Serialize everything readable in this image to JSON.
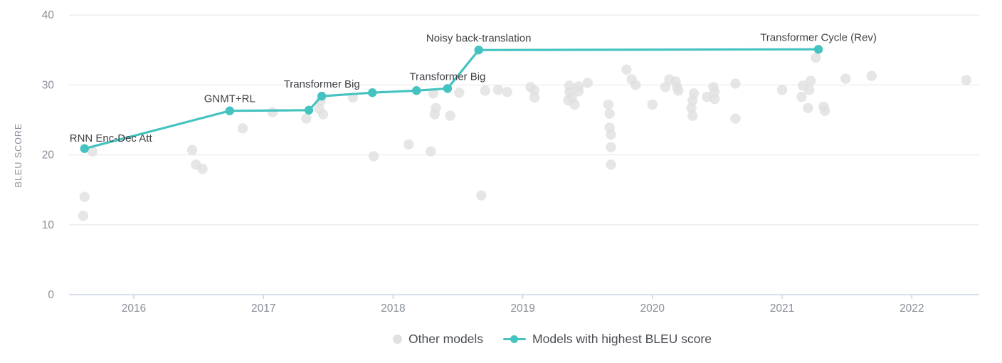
{
  "accent_color": "#45c3c0",
  "other_color": "#e0e0e0",
  "grid_color": "#ececec",
  "axis_color": "#ccd5e8",
  "chart_data": {
    "type": "scatter",
    "title": "",
    "xlabel": "",
    "ylabel": "BLEU SCORE",
    "grid": true,
    "legend_position": "bottom-center",
    "xlim": [
      2015.5,
      2022.55
    ],
    "ylim": [
      0,
      40
    ],
    "x_ticks": [
      {
        "v": 2016,
        "label": "2016"
      },
      {
        "v": 2017,
        "label": "2017"
      },
      {
        "v": 2018,
        "label": "2018"
      },
      {
        "v": 2019,
        "label": "2019"
      },
      {
        "v": 2020,
        "label": "2020"
      },
      {
        "v": 2021,
        "label": "2021"
      },
      {
        "v": 2022,
        "label": "2022"
      }
    ],
    "y_ticks": [
      {
        "v": 0,
        "label": "0"
      },
      {
        "v": 10,
        "label": "10"
      },
      {
        "v": 20,
        "label": "20"
      },
      {
        "v": 30,
        "label": "30"
      },
      {
        "v": 40,
        "label": "40"
      }
    ],
    "series": [
      {
        "name": "Other models",
        "type": "scatter",
        "color": "#e0e0e0",
        "points": [
          [
            2015.62,
            14.0
          ],
          [
            2015.61,
            11.3
          ],
          [
            2015.68,
            20.5
          ],
          [
            2016.45,
            20.7
          ],
          [
            2016.48,
            18.6
          ],
          [
            2016.53,
            18.0
          ],
          [
            2016.84,
            23.8
          ],
          [
            2017.07,
            26.1
          ],
          [
            2017.33,
            25.2
          ],
          [
            2017.44,
            27.7
          ],
          [
            2017.43,
            26.6
          ],
          [
            2017.46,
            25.8
          ],
          [
            2017.69,
            28.2
          ],
          [
            2017.85,
            19.8
          ],
          [
            2018.12,
            21.5
          ],
          [
            2018.29,
            20.5
          ],
          [
            2018.31,
            28.8
          ],
          [
            2018.33,
            26.7
          ],
          [
            2018.32,
            25.8
          ],
          [
            2018.44,
            25.6
          ],
          [
            2018.51,
            28.9
          ],
          [
            2018.68,
            14.2
          ],
          [
            2018.71,
            29.2
          ],
          [
            2018.81,
            29.3
          ],
          [
            2018.88,
            29.0
          ],
          [
            2019.06,
            29.7
          ],
          [
            2019.09,
            29.2
          ],
          [
            2019.09,
            28.2
          ],
          [
            2019.35,
            27.8
          ],
          [
            2019.36,
            29.9
          ],
          [
            2019.36,
            29.0
          ],
          [
            2019.38,
            28.2
          ],
          [
            2019.4,
            27.2
          ],
          [
            2019.43,
            29.8
          ],
          [
            2019.43,
            29.1
          ],
          [
            2019.5,
            30.3
          ],
          [
            2019.66,
            27.2
          ],
          [
            2019.67,
            25.9
          ],
          [
            2019.67,
            23.9
          ],
          [
            2019.68,
            22.9
          ],
          [
            2019.68,
            21.1
          ],
          [
            2019.68,
            18.6
          ],
          [
            2019.8,
            32.2
          ],
          [
            2019.84,
            30.8
          ],
          [
            2019.87,
            30.0
          ],
          [
            2020.0,
            27.2
          ],
          [
            2020.1,
            29.7
          ],
          [
            2020.13,
            30.8
          ],
          [
            2020.18,
            30.5
          ],
          [
            2020.19,
            29.7
          ],
          [
            2020.2,
            29.2
          ],
          [
            2020.3,
            26.7
          ],
          [
            2020.31,
            27.8
          ],
          [
            2020.31,
            25.6
          ],
          [
            2020.32,
            28.8
          ],
          [
            2020.42,
            28.3
          ],
          [
            2020.47,
            29.7
          ],
          [
            2020.48,
            29.0
          ],
          [
            2020.48,
            28.0
          ],
          [
            2020.64,
            30.2
          ],
          [
            2020.64,
            25.2
          ],
          [
            2021.0,
            29.3
          ],
          [
            2021.15,
            28.3
          ],
          [
            2021.16,
            29.9
          ],
          [
            2021.2,
            26.7
          ],
          [
            2021.21,
            29.3
          ],
          [
            2021.22,
            30.6
          ],
          [
            2021.26,
            33.9
          ],
          [
            2021.32,
            26.9
          ],
          [
            2021.33,
            26.3
          ],
          [
            2021.49,
            30.9
          ],
          [
            2021.69,
            31.3
          ],
          [
            2022.42,
            30.7
          ]
        ]
      },
      {
        "name": "Models with highest BLEU score",
        "type": "line",
        "color": "#45c3c0",
        "points": [
          {
            "x": 2015.62,
            "y": 20.9,
            "label": "RNN Enc-Dec Att",
            "anchor": "start",
            "dx": -21,
            "dy": -10
          },
          {
            "x": 2016.74,
            "y": 26.3,
            "label": "GNMT+RL",
            "anchor": "middle",
            "dx": 0,
            "dy": -12
          },
          {
            "x": 2017.35,
            "y": 26.4
          },
          {
            "x": 2017.45,
            "y": 28.4,
            "label": "Transformer Big",
            "anchor": "middle",
            "dx": 0,
            "dy": -12
          },
          {
            "x": 2017.84,
            "y": 28.9
          },
          {
            "x": 2018.18,
            "y": 29.2
          },
          {
            "x": 2018.42,
            "y": 29.5,
            "label": "Transformer Big",
            "anchor": "middle",
            "dx": 0,
            "dy": -12
          },
          {
            "x": 2018.66,
            "y": 35.0,
            "label": "Noisy back-translation",
            "anchor": "middle",
            "dx": 0,
            "dy": -12
          },
          {
            "x": 2021.28,
            "y": 35.1,
            "label": "Transformer Cycle (Rev)",
            "anchor": "middle",
            "dx": 0,
            "dy": -12
          }
        ]
      }
    ]
  },
  "legend": {
    "other_label": "Other models",
    "best_label": "Models with highest BLEU score"
  }
}
